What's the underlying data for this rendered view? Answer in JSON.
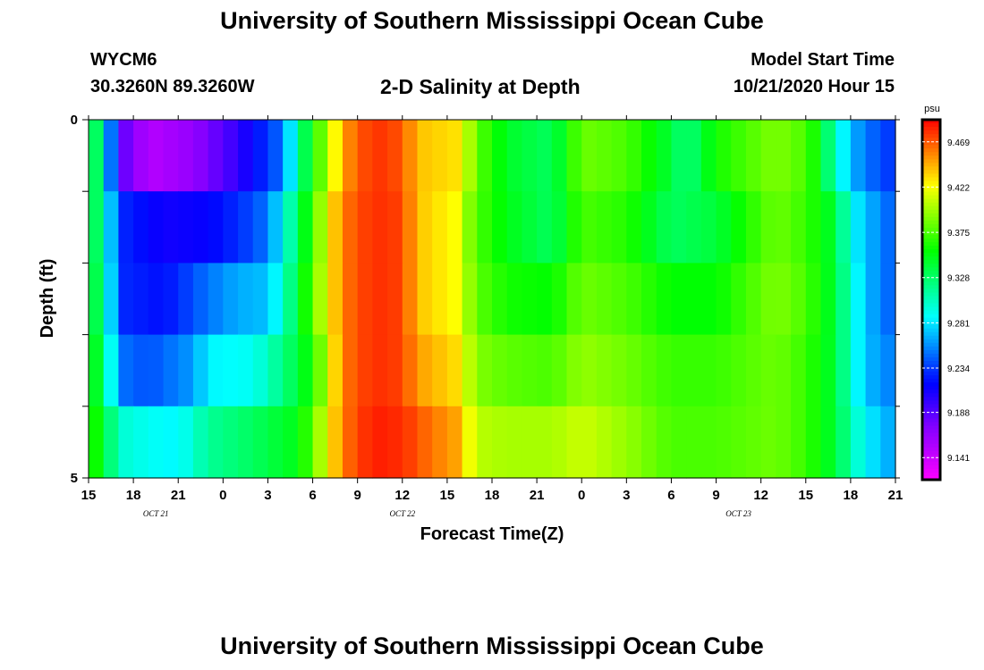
{
  "header": {
    "title": "University of Southern Mississippi Ocean Cube",
    "station": "WYCM6",
    "coords": "30.3260N 89.3260W",
    "subtitle": "2-D Salinity at Depth",
    "model_label": "Model Start Time",
    "model_time": "10/21/2020 Hour 15"
  },
  "footer": {
    "title": "University of Southern Mississippi Ocean Cube"
  },
  "chart_data": {
    "type": "heatmap",
    "title": "2-D Salinity at Depth",
    "xlabel": "Forecast Time(Z)",
    "ylabel": "Depth (ft)",
    "x_tick_labels": [
      "15",
      "18",
      "21",
      "0",
      "3",
      "6",
      "9",
      "12",
      "15",
      "18",
      "21",
      "0",
      "3",
      "6",
      "9",
      "12",
      "15",
      "18",
      "21"
    ],
    "day_labels": [
      {
        "text": "OCT 21",
        "hour_index": 4.5
      },
      {
        "text": "OCT 22",
        "hour_index": 21
      },
      {
        "text": "OCT 23",
        "hour_index": 43.5
      }
    ],
    "x_hours": [
      15,
      69
    ],
    "y_tick_labels": [
      "0",
      "5"
    ],
    "ylim": [
      0,
      5
    ],
    "colorbar": {
      "unit": "psu",
      "ticks": [
        "9.469",
        "9.422",
        "9.375",
        "9.328",
        "9.281",
        "9.234",
        "9.188",
        "9.141"
      ],
      "range": [
        9.118,
        9.492
      ]
    },
    "depth_rows": [
      0.5,
      1.5,
      2.5,
      3.5,
      4.5
    ],
    "row_anchors": [
      [
        [
          0,
          9.35
        ],
        [
          1,
          9.31
        ],
        [
          2,
          9.19
        ],
        [
          4,
          9.15
        ],
        [
          7,
          9.165
        ],
        [
          10,
          9.2
        ],
        [
          13,
          9.25
        ],
        [
          14,
          9.31
        ],
        [
          15,
          9.36
        ],
        [
          16,
          9.4
        ],
        [
          17,
          9.45
        ],
        [
          19,
          9.48
        ],
        [
          21,
          9.47
        ],
        [
          22,
          9.44
        ],
        [
          25,
          9.43
        ],
        [
          25.5,
          9.4
        ],
        [
          26,
          9.38
        ],
        [
          28,
          9.345
        ],
        [
          31,
          9.33
        ],
        [
          33,
          9.385
        ],
        [
          36,
          9.375
        ],
        [
          39,
          9.34
        ],
        [
          40,
          9.32
        ],
        [
          42,
          9.36
        ],
        [
          46,
          9.39
        ],
        [
          48,
          9.375
        ],
        [
          49,
          9.35
        ],
        [
          50,
          9.3
        ],
        [
          51,
          9.27
        ],
        [
          52,
          9.25
        ],
        [
          54,
          9.23
        ]
      ],
      [
        [
          0,
          9.35
        ],
        [
          1,
          9.31
        ],
        [
          2,
          9.23
        ],
        [
          5,
          9.21
        ],
        [
          8,
          9.215
        ],
        [
          10,
          9.23
        ],
        [
          12,
          9.25
        ],
        [
          13,
          9.29
        ],
        [
          14,
          9.33
        ],
        [
          15,
          9.37
        ],
        [
          16,
          9.42
        ],
        [
          17,
          9.46
        ],
        [
          19,
          9.48
        ],
        [
          21,
          9.475
        ],
        [
          22,
          9.44
        ],
        [
          25,
          9.42
        ],
        [
          25.5,
          9.39
        ],
        [
          26,
          9.375
        ],
        [
          28,
          9.35
        ],
        [
          31,
          9.33
        ],
        [
          33,
          9.375
        ],
        [
          36,
          9.365
        ],
        [
          39,
          9.33
        ],
        [
          42,
          9.34
        ],
        [
          46,
          9.385
        ],
        [
          48,
          9.37
        ],
        [
          50,
          9.34
        ],
        [
          51,
          9.29
        ],
        [
          52,
          9.27
        ],
        [
          54,
          9.24
        ]
      ],
      [
        [
          0,
          9.35
        ],
        [
          1,
          9.32
        ],
        [
          2,
          9.23
        ],
        [
          5,
          9.22
        ],
        [
          8,
          9.25
        ],
        [
          10,
          9.265
        ],
        [
          12,
          9.27
        ],
        [
          13,
          9.3
        ],
        [
          14,
          9.34
        ],
        [
          15,
          9.38
        ],
        [
          16,
          9.42
        ],
        [
          17,
          9.46
        ],
        [
          19,
          9.48
        ],
        [
          21,
          9.475
        ],
        [
          22,
          9.44
        ],
        [
          25,
          9.42
        ],
        [
          25.5,
          9.395
        ],
        [
          26,
          9.38
        ],
        [
          28,
          9.36
        ],
        [
          31,
          9.355
        ],
        [
          33,
          9.385
        ],
        [
          36,
          9.375
        ],
        [
          39,
          9.355
        ],
        [
          42,
          9.355
        ],
        [
          46,
          9.39
        ],
        [
          48,
          9.375
        ],
        [
          50,
          9.34
        ],
        [
          51,
          9.3
        ],
        [
          52,
          9.27
        ],
        [
          54,
          9.24
        ]
      ],
      [
        [
          0,
          9.36
        ],
        [
          1,
          9.33
        ],
        [
          2,
          9.25
        ],
        [
          4,
          9.24
        ],
        [
          7,
          9.26
        ],
        [
          8,
          9.285
        ],
        [
          11,
          9.29
        ],
        [
          13,
          9.32
        ],
        [
          15,
          9.36
        ],
        [
          16,
          9.41
        ],
        [
          17,
          9.46
        ],
        [
          19,
          9.48
        ],
        [
          21,
          9.475
        ],
        [
          22,
          9.45
        ],
        [
          25,
          9.43
        ],
        [
          25.5,
          9.405
        ],
        [
          26,
          9.39
        ],
        [
          28,
          9.38
        ],
        [
          31,
          9.375
        ],
        [
          33,
          9.395
        ],
        [
          36,
          9.385
        ],
        [
          39,
          9.37
        ],
        [
          42,
          9.37
        ],
        [
          46,
          9.385
        ],
        [
          48,
          9.37
        ],
        [
          50,
          9.34
        ],
        [
          51,
          9.3
        ],
        [
          52,
          9.27
        ],
        [
          54,
          9.25
        ]
      ],
      [
        [
          0,
          9.37
        ],
        [
          1,
          9.345
        ],
        [
          2,
          9.3
        ],
        [
          4,
          9.29
        ],
        [
          6,
          9.285
        ],
        [
          7,
          9.3
        ],
        [
          8,
          9.315
        ],
        [
          11,
          9.33
        ],
        [
          14,
          9.35
        ],
        [
          15,
          9.38
        ],
        [
          16,
          9.42
        ],
        [
          17,
          9.46
        ],
        [
          19,
          9.485
        ],
        [
          21,
          9.48
        ],
        [
          23,
          9.46
        ],
        [
          25,
          9.445
        ],
        [
          25.5,
          9.42
        ],
        [
          26,
          9.405
        ],
        [
          28,
          9.4
        ],
        [
          31,
          9.4
        ],
        [
          33,
          9.41
        ],
        [
          36,
          9.395
        ],
        [
          39,
          9.375
        ],
        [
          42,
          9.375
        ],
        [
          46,
          9.385
        ],
        [
          48,
          9.37
        ],
        [
          50,
          9.34
        ],
        [
          51,
          9.31
        ],
        [
          52,
          9.285
        ],
        [
          54,
          9.26
        ]
      ]
    ]
  }
}
